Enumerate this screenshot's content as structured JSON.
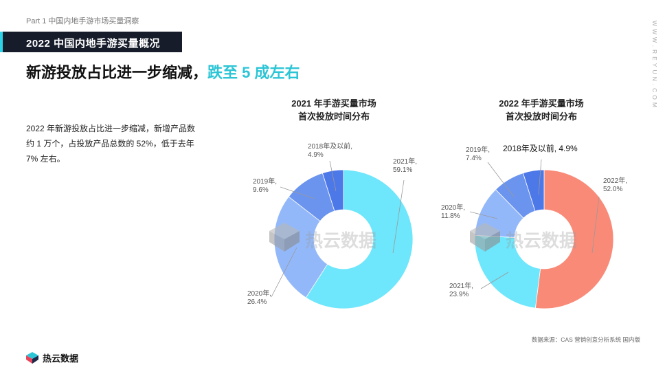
{
  "header": {
    "part_label": "Part 1  中国内地手游市场买量洞察",
    "section_title": "2022 中国内地手游买量概况",
    "headline_main": "新游投放占比进一步缩减，",
    "headline_highlight": "跌至  5  成左右",
    "side_url": "WWW.REYUN.COM"
  },
  "description": "2022 年新游投放占比进一步缩减，新增产品数约 1 万个，占投放产品总数的 52%，低于去年 7% 左右。",
  "watermark": "热云数据",
  "footer": {
    "logo_text": "热云数据",
    "source": "数据来源：CAS 营销创意分析系统 国内版"
  },
  "chart_data": [
    {
      "type": "pie",
      "title_line1": "2021 年手游买量市场",
      "title_line2": "首次投放时间分布",
      "slices": [
        {
          "label": "2021年,",
          "value": 59.1,
          "value_label": "59.1%",
          "color": "#6ee6fb"
        },
        {
          "label": "2020年,",
          "value": 26.4,
          "value_label": "26.4%",
          "color": "#93b8f9"
        },
        {
          "label": "2019年,",
          "value": 9.6,
          "value_label": "9.6%",
          "color": "#6b94ee"
        },
        {
          "label": "2018年及以前,",
          "value": 4.9,
          "value_label": "4.9%",
          "color": "#4d78e8"
        }
      ]
    },
    {
      "type": "pie",
      "title_line1": "2022 年手游买量市场",
      "title_line2": "首次投放时间分布",
      "slices": [
        {
          "label": "2022年,",
          "value": 52.0,
          "value_label": "52.0%",
          "color": "#fa8a78"
        },
        {
          "label": "2021年,",
          "value": 23.9,
          "value_label": "23.9%",
          "color": "#6ee6fb"
        },
        {
          "label": "2020年,",
          "value": 11.8,
          "value_label": "11.8%",
          "color": "#93b8f9"
        },
        {
          "label": "2019年,",
          "value": 7.4,
          "value_label": "7.4%",
          "color": "#6b94ee"
        },
        {
          "label": "2018年及以前, 4.9%",
          "value": 4.9,
          "value_label": "",
          "color": "#4d78e8"
        }
      ]
    }
  ]
}
